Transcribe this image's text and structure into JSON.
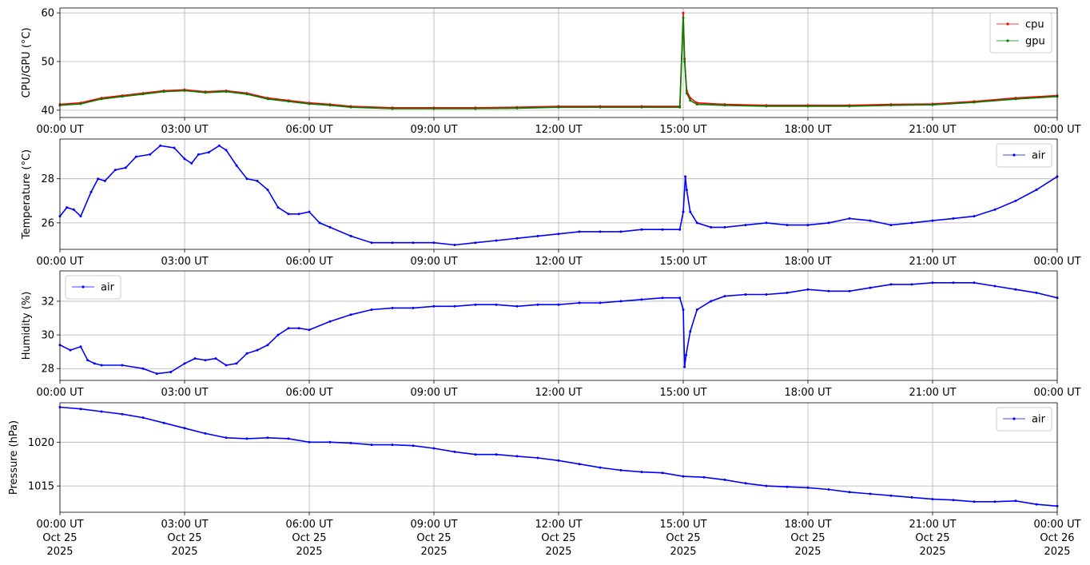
{
  "chart_data": [
    {
      "type": "line",
      "ylabel": "CPU/GPU (°C)",
      "ylim": [
        38.5,
        61.0
      ],
      "yticks": [
        40,
        50,
        60
      ],
      "xlim": [
        "2025-10-25T00:00",
        "2025-10-26T00:00"
      ],
      "grid": true,
      "legend_position": "top-right",
      "series": [
        {
          "name": "cpu",
          "color": "#ff0000",
          "x": [
            "00:00",
            "00:30",
            "01:00",
            "01:30",
            "02:00",
            "02:30",
            "03:00",
            "03:30",
            "04:00",
            "04:30",
            "05:00",
            "05:30",
            "06:00",
            "06:30",
            "07:00",
            "08:00",
            "09:00",
            "10:00",
            "11:00",
            "12:00",
            "13:00",
            "14:00",
            "14:55",
            "15:00",
            "15:02",
            "15:05",
            "15:10",
            "15:20",
            "16:00",
            "17:00",
            "18:00",
            "19:00",
            "20:00",
            "21:00",
            "22:00",
            "23:00",
            "24:00"
          ],
          "y": [
            41.2,
            41.5,
            42.5,
            43.0,
            43.5,
            44.0,
            44.2,
            43.8,
            44.0,
            43.5,
            42.5,
            42.0,
            41.5,
            41.2,
            40.8,
            40.5,
            40.5,
            40.5,
            40.6,
            40.8,
            40.8,
            40.8,
            40.8,
            60.0,
            50.5,
            44.0,
            42.5,
            41.5,
            41.2,
            41.0,
            41.0,
            41.0,
            41.2,
            41.3,
            41.8,
            42.5,
            43.0
          ]
        },
        {
          "name": "gpu",
          "color": "#008000",
          "x": [
            "00:00",
            "00:30",
            "01:00",
            "01:30",
            "02:00",
            "02:30",
            "03:00",
            "03:30",
            "04:00",
            "04:30",
            "05:00",
            "05:30",
            "06:00",
            "06:30",
            "07:00",
            "08:00",
            "09:00",
            "10:00",
            "11:00",
            "12:00",
            "13:00",
            "14:00",
            "14:55",
            "15:00",
            "15:02",
            "15:05",
            "15:10",
            "15:20",
            "16:00",
            "17:00",
            "18:00",
            "19:00",
            "20:00",
            "21:00",
            "22:00",
            "23:00",
            "24:00"
          ],
          "y": [
            41.0,
            41.3,
            42.3,
            42.8,
            43.3,
            43.8,
            44.0,
            43.6,
            43.8,
            43.3,
            42.3,
            41.8,
            41.3,
            41.0,
            40.6,
            40.3,
            40.3,
            40.3,
            40.4,
            40.6,
            40.6,
            40.6,
            40.6,
            59.0,
            50.0,
            43.5,
            42.0,
            41.2,
            41.0,
            40.8,
            40.8,
            40.8,
            41.0,
            41.1,
            41.6,
            42.3,
            42.8
          ]
        }
      ]
    },
    {
      "type": "line",
      "ylabel": "Temperature (°C)",
      "ylim": [
        24.8,
        29.8
      ],
      "yticks": [
        26,
        28
      ],
      "xlim": [
        "2025-10-25T00:00",
        "2025-10-26T00:00"
      ],
      "grid": true,
      "legend_position": "top-right",
      "series": [
        {
          "name": "air",
          "color": "#0000ff",
          "x": [
            "00:00",
            "00:10",
            "00:20",
            "00:30",
            "00:45",
            "00:55",
            "01:05",
            "01:20",
            "01:35",
            "01:50",
            "02:10",
            "02:25",
            "02:45",
            "03:00",
            "03:10",
            "03:20",
            "03:35",
            "03:50",
            "04:00",
            "04:15",
            "04:30",
            "04:45",
            "05:00",
            "05:15",
            "05:30",
            "05:45",
            "06:00",
            "06:15",
            "06:30",
            "07:00",
            "07:30",
            "08:00",
            "08:30",
            "09:00",
            "09:30",
            "10:00",
            "10:30",
            "11:00",
            "11:30",
            "12:00",
            "12:30",
            "13:00",
            "13:30",
            "14:00",
            "14:30",
            "14:55",
            "15:00",
            "15:03",
            "15:05",
            "15:10",
            "15:20",
            "15:40",
            "16:00",
            "16:30",
            "17:00",
            "17:30",
            "18:00",
            "18:30",
            "19:00",
            "19:30",
            "20:00",
            "20:30",
            "21:00",
            "21:30",
            "22:00",
            "22:30",
            "23:00",
            "23:30",
            "24:00"
          ],
          "y": [
            26.3,
            26.7,
            26.6,
            26.3,
            27.4,
            28.0,
            27.9,
            28.4,
            28.5,
            29.0,
            29.1,
            29.5,
            29.4,
            28.9,
            28.7,
            29.1,
            29.2,
            29.5,
            29.3,
            28.6,
            28.0,
            27.9,
            27.5,
            26.7,
            26.4,
            26.4,
            26.5,
            26.0,
            25.8,
            25.4,
            25.1,
            25.1,
            25.1,
            25.1,
            25.0,
            25.1,
            25.2,
            25.3,
            25.4,
            25.5,
            25.6,
            25.6,
            25.6,
            25.7,
            25.7,
            25.7,
            26.5,
            28.1,
            27.5,
            26.5,
            26.0,
            25.8,
            25.8,
            25.9,
            26.0,
            25.9,
            25.9,
            26.0,
            26.2,
            26.1,
            25.9,
            26.0,
            26.1,
            26.2,
            26.3,
            26.6,
            27.0,
            27.5,
            28.1
          ]
        }
      ]
    },
    {
      "type": "line",
      "ylabel": "Humidity (%)",
      "ylim": [
        27.3,
        33.8
      ],
      "yticks": [
        28,
        30,
        32
      ],
      "xlim": [
        "2025-10-25T00:00",
        "2025-10-26T00:00"
      ],
      "grid": true,
      "legend_position": "top-left",
      "series": [
        {
          "name": "air",
          "color": "#0000ff",
          "x": [
            "00:00",
            "00:15",
            "00:30",
            "00:40",
            "00:50",
            "01:00",
            "01:30",
            "02:00",
            "02:20",
            "02:40",
            "03:00",
            "03:15",
            "03:30",
            "03:45",
            "04:00",
            "04:15",
            "04:30",
            "04:45",
            "05:00",
            "05:15",
            "05:30",
            "05:45",
            "06:00",
            "06:30",
            "07:00",
            "07:30",
            "08:00",
            "08:30",
            "09:00",
            "09:30",
            "10:00",
            "10:30",
            "11:00",
            "11:30",
            "12:00",
            "12:30",
            "13:00",
            "13:30",
            "14:00",
            "14:30",
            "14:55",
            "15:00",
            "15:02",
            "15:04",
            "15:10",
            "15:20",
            "15:40",
            "16:00",
            "16:30",
            "17:00",
            "17:30",
            "18:00",
            "18:30",
            "19:00",
            "19:30",
            "20:00",
            "20:30",
            "21:00",
            "21:30",
            "22:00",
            "22:30",
            "23:00",
            "23:30",
            "24:00"
          ],
          "y": [
            29.4,
            29.1,
            29.3,
            28.5,
            28.3,
            28.2,
            28.2,
            28.0,
            27.7,
            27.8,
            28.3,
            28.6,
            28.5,
            28.6,
            28.2,
            28.3,
            28.9,
            29.1,
            29.4,
            30.0,
            30.4,
            30.4,
            30.3,
            30.8,
            31.2,
            31.5,
            31.6,
            31.6,
            31.7,
            31.7,
            31.8,
            31.8,
            31.7,
            31.8,
            31.8,
            31.9,
            31.9,
            32.0,
            32.1,
            32.2,
            32.2,
            31.5,
            28.1,
            28.8,
            30.2,
            31.5,
            32.0,
            32.3,
            32.4,
            32.4,
            32.5,
            32.7,
            32.6,
            32.6,
            32.8,
            33.0,
            33.0,
            33.1,
            33.1,
            33.1,
            32.9,
            32.7,
            32.5,
            32.2
          ]
        }
      ]
    },
    {
      "type": "line",
      "ylabel": "Pressure (hPa)",
      "ylim": [
        1012.0,
        1024.5
      ],
      "yticks": [
        1015,
        1020
      ],
      "xlim": [
        "2025-10-25T00:00",
        "2025-10-26T00:00"
      ],
      "grid": true,
      "legend_position": "top-right",
      "series": [
        {
          "name": "air",
          "color": "#0000ff",
          "x": [
            "00:00",
            "00:30",
            "01:00",
            "01:30",
            "02:00",
            "02:30",
            "03:00",
            "03:30",
            "04:00",
            "04:30",
            "05:00",
            "05:30",
            "06:00",
            "06:30",
            "07:00",
            "07:30",
            "08:00",
            "08:30",
            "09:00",
            "09:30",
            "10:00",
            "10:30",
            "11:00",
            "11:30",
            "12:00",
            "12:30",
            "13:00",
            "13:30",
            "14:00",
            "14:30",
            "15:00",
            "15:30",
            "16:00",
            "16:30",
            "17:00",
            "17:30",
            "18:00",
            "18:30",
            "19:00",
            "19:30",
            "20:00",
            "20:30",
            "21:00",
            "21:30",
            "22:00",
            "22:30",
            "23:00",
            "23:30",
            "24:00"
          ],
          "y": [
            1024.0,
            1023.8,
            1023.5,
            1023.2,
            1022.8,
            1022.2,
            1021.6,
            1021.0,
            1020.5,
            1020.4,
            1020.5,
            1020.4,
            1020.0,
            1020.0,
            1019.9,
            1019.7,
            1019.7,
            1019.6,
            1019.3,
            1018.9,
            1018.6,
            1018.6,
            1018.4,
            1018.2,
            1017.9,
            1017.5,
            1017.1,
            1016.8,
            1016.6,
            1016.5,
            1016.1,
            1016.0,
            1015.7,
            1015.3,
            1015.0,
            1014.9,
            1014.8,
            1014.6,
            1014.3,
            1014.1,
            1013.9,
            1013.7,
            1013.5,
            1013.4,
            1013.2,
            1013.2,
            1013.3,
            1012.9,
            1012.7
          ]
        }
      ]
    }
  ],
  "x_axis": {
    "tick_labels": [
      "00:00 UT",
      "03:00 UT",
      "06:00 UT",
      "09:00 UT",
      "12:00 UT",
      "15:00 UT",
      "18:00 UT",
      "21:00 UT",
      "00:00 UT"
    ],
    "bottom_date_lines": [
      "Oct 25",
      "Oct 25",
      "Oct 25",
      "Oct 25",
      "Oct 25",
      "Oct 25",
      "Oct 25",
      "Oct 25",
      "Oct 26"
    ],
    "bottom_year_lines": [
      "2025",
      "2025",
      "2025",
      "2025",
      "2025",
      "2025",
      "2025",
      "2025",
      "2025"
    ]
  }
}
